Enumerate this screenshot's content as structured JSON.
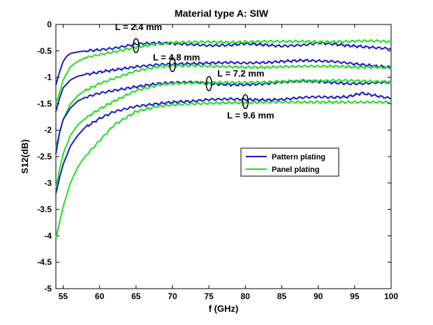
{
  "chart_data": {
    "type": "line",
    "title": "Material type A: SIW",
    "xlabel": "f (GHz)",
    "ylabel": "S12(dB)",
    "xlim": [
      54,
      100
    ],
    "ylim": [
      -5,
      0
    ],
    "xticks": [
      55,
      60,
      65,
      70,
      75,
      80,
      85,
      90,
      95,
      100
    ],
    "yticks": [
      0,
      -0.5,
      -1,
      -1.5,
      -2,
      -2.5,
      -3,
      -3.5,
      -4,
      -4.5,
      -5
    ],
    "grid": false,
    "legend_position": "middle-right",
    "legend": [
      {
        "label": "Pattern plating",
        "color": "#1a1acc"
      },
      {
        "label": "Panel plating",
        "color": "#22dd22"
      }
    ],
    "annotations": [
      {
        "text": "L = 2.4 mm",
        "marker_x": 65,
        "marker_y": -0.4
      },
      {
        "text": "L = 4.8 mm",
        "marker_x": 70,
        "marker_y": -0.76
      },
      {
        "text": "L = 7.2 mm",
        "marker_x": 75,
        "marker_y": -1.12
      },
      {
        "text": "L = 9.6 mm",
        "marker_x": 80,
        "marker_y": -1.46
      }
    ],
    "series": [
      {
        "name": "Pattern plating",
        "length": "L = 2.4 mm",
        "color": "#1a1acc",
        "x": [
          54,
          54.5,
          55,
          55.5,
          56,
          57,
          58,
          60,
          62,
          65,
          68,
          70,
          73,
          75,
          78,
          80,
          83,
          85,
          88,
          90,
          92,
          94,
          96,
          98,
          100
        ],
        "y": [
          -1.15,
          -0.9,
          -0.7,
          -0.6,
          -0.55,
          -0.52,
          -0.5,
          -0.48,
          -0.45,
          -0.37,
          -0.35,
          -0.36,
          -0.38,
          -0.4,
          -0.39,
          -0.36,
          -0.39,
          -0.41,
          -0.39,
          -0.35,
          -0.37,
          -0.4,
          -0.42,
          -0.44,
          -0.46
        ]
      },
      {
        "name": "Panel plating",
        "length": "L = 2.4 mm",
        "color": "#22dd22",
        "x": [
          54,
          54.5,
          55,
          56,
          57,
          58,
          60,
          62,
          65,
          68,
          70,
          73,
          75,
          78,
          80,
          83,
          85,
          88,
          90,
          92,
          94,
          96,
          98,
          100
        ],
        "y": [
          -1.5,
          -1.3,
          -1.05,
          -0.8,
          -0.7,
          -0.63,
          -0.57,
          -0.52,
          -0.43,
          -0.37,
          -0.34,
          -0.33,
          -0.33,
          -0.34,
          -0.33,
          -0.32,
          -0.32,
          -0.32,
          -0.33,
          -0.33,
          -0.32,
          -0.31,
          -0.31,
          -0.33
        ]
      },
      {
        "name": "Pattern plating",
        "length": "L = 4.8 mm",
        "color": "#1a1acc",
        "x": [
          54,
          54.5,
          55,
          56,
          57,
          58,
          60,
          62,
          65,
          68,
          70,
          73,
          75,
          78,
          80,
          83,
          85,
          88,
          90,
          92,
          94,
          96,
          98,
          100
        ],
        "y": [
          -1.65,
          -1.4,
          -1.2,
          -1.05,
          -0.98,
          -0.95,
          -0.9,
          -0.86,
          -0.8,
          -0.76,
          -0.75,
          -0.74,
          -0.73,
          -0.72,
          -0.73,
          -0.72,
          -0.7,
          -0.68,
          -0.69,
          -0.7,
          -0.73,
          -0.76,
          -0.79,
          -0.81
        ]
      },
      {
        "name": "Panel plating",
        "length": "L = 4.8 mm",
        "color": "#22dd22",
        "x": [
          54,
          54.5,
          55,
          56,
          57,
          58,
          60,
          62,
          65,
          68,
          70,
          73,
          75,
          78,
          80,
          83,
          85,
          88,
          90,
          92,
          94,
          96,
          98,
          100
        ],
        "y": [
          -2.35,
          -2.05,
          -1.8,
          -1.5,
          -1.35,
          -1.25,
          -1.12,
          -1.02,
          -0.88,
          -0.8,
          -0.78,
          -0.78,
          -0.79,
          -0.8,
          -0.81,
          -0.81,
          -0.8,
          -0.79,
          -0.79,
          -0.79,
          -0.8,
          -0.81,
          -0.81,
          -0.82
        ]
      },
      {
        "name": "Pattern plating",
        "length": "L = 7.2 mm",
        "color": "#1a1acc",
        "x": [
          54,
          54.5,
          55,
          56,
          57,
          58,
          60,
          62,
          65,
          68,
          70,
          73,
          75,
          78,
          80,
          83,
          85,
          88,
          90,
          92,
          94,
          96,
          98,
          100
        ],
        "y": [
          -2.45,
          -2.05,
          -1.8,
          -1.58,
          -1.45,
          -1.38,
          -1.3,
          -1.25,
          -1.18,
          -1.12,
          -1.1,
          -1.09,
          -1.12,
          -1.14,
          -1.14,
          -1.12,
          -1.09,
          -1.07,
          -1.08,
          -1.1,
          -1.12,
          -1.12,
          -1.1,
          -1.09
        ]
      },
      {
        "name": "Panel plating",
        "length": "L = 7.2 mm",
        "color": "#22dd22",
        "x": [
          54,
          54.5,
          55,
          56,
          57,
          58,
          60,
          62,
          65,
          68,
          70,
          73,
          75,
          78,
          80,
          83,
          85,
          88,
          90,
          92,
          94,
          96,
          98,
          100
        ],
        "y": [
          -3.1,
          -2.75,
          -2.45,
          -2.1,
          -1.9,
          -1.78,
          -1.6,
          -1.45,
          -1.25,
          -1.15,
          -1.12,
          -1.1,
          -1.1,
          -1.1,
          -1.1,
          -1.09,
          -1.08,
          -1.07,
          -1.07,
          -1.06,
          -1.06,
          -1.07,
          -1.08,
          -1.1
        ]
      },
      {
        "name": "Pattern plating",
        "length": "L = 9.6 mm",
        "color": "#1a1acc",
        "x": [
          54,
          54.5,
          55,
          56,
          57,
          58,
          60,
          62,
          65,
          68,
          70,
          73,
          75,
          78,
          80,
          83,
          85,
          88,
          90,
          92,
          94,
          96,
          98,
          100
        ],
        "y": [
          -3.2,
          -2.9,
          -2.65,
          -2.3,
          -2.1,
          -1.95,
          -1.78,
          -1.65,
          -1.55,
          -1.5,
          -1.47,
          -1.45,
          -1.42,
          -1.41,
          -1.42,
          -1.43,
          -1.42,
          -1.38,
          -1.37,
          -1.38,
          -1.37,
          -1.3,
          -1.35,
          -1.4
        ]
      },
      {
        "name": "Panel plating",
        "length": "L = 9.6 mm",
        "color": "#22dd22",
        "x": [
          54,
          54.5,
          55,
          56,
          57,
          58,
          60,
          62,
          65,
          68,
          70,
          73,
          75,
          78,
          80,
          83,
          85,
          88,
          90,
          92,
          94,
          96,
          98,
          100
        ],
        "y": [
          -4.05,
          -3.75,
          -3.45,
          -3.0,
          -2.7,
          -2.5,
          -2.2,
          -1.9,
          -1.65,
          -1.55,
          -1.52,
          -1.5,
          -1.49,
          -1.48,
          -1.48,
          -1.47,
          -1.47,
          -1.47,
          -1.47,
          -1.47,
          -1.47,
          -1.47,
          -1.47,
          -1.47
        ]
      }
    ]
  }
}
